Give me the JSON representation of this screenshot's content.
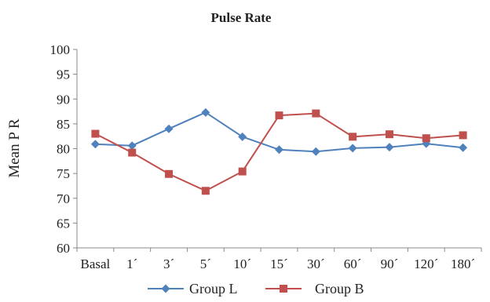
{
  "chart_data": {
    "type": "line",
    "title": "Pulse Rate",
    "xlabel": "",
    "ylabel": "Mean P R",
    "categories": [
      "Basal",
      "1´",
      "3´",
      "5´",
      "10´",
      "15´",
      "30´",
      "60´",
      "90´",
      "120´",
      "180´"
    ],
    "ylim": [
      60,
      100
    ],
    "yticks": [
      "60",
      "65",
      "70",
      "75",
      "80",
      "85",
      "90",
      "95",
      "100"
    ],
    "grid": false,
    "legend_position": "bottom",
    "series": [
      {
        "name": "Group L",
        "marker": "diamond",
        "color": "#4f81bd",
        "values": [
          80.9,
          80.6,
          84.0,
          87.3,
          82.4,
          79.8,
          79.4,
          80.1,
          80.3,
          81.0,
          80.2
        ]
      },
      {
        "name": "Group B",
        "marker": "square",
        "color": "#c0504d",
        "values": [
          83.0,
          79.2,
          74.9,
          71.5,
          75.4,
          86.7,
          87.1,
          82.4,
          82.9,
          82.1,
          82.7
        ]
      }
    ]
  }
}
